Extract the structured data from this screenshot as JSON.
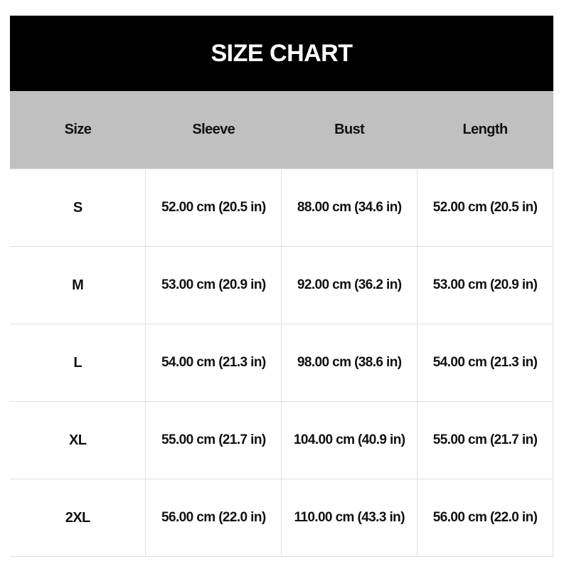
{
  "title": "SIZE CHART",
  "headers": [
    "Size",
    "Sleeve",
    "Bust",
    "Length"
  ],
  "rows": [
    [
      "S",
      "52.00 cm (20.5 in)",
      "88.00 cm (34.6 in)",
      "52.00 cm (20.5 in)"
    ],
    [
      "M",
      "53.00 cm (20.9 in)",
      "92.00 cm (36.2 in)",
      "53.00 cm (20.9 in)"
    ],
    [
      "L",
      "54.00 cm (21.3 in)",
      "98.00 cm (38.6 in)",
      "54.00 cm (21.3 in)"
    ],
    [
      "XL",
      "55.00 cm (21.7 in)",
      "104.00 cm (40.9 in)",
      "55.00 cm (21.7 in)"
    ],
    [
      "2XL",
      "56.00 cm (22.0 in)",
      "110.00 cm (43.3 in)",
      "56.00 cm (22.0 in)"
    ]
  ],
  "colors": {
    "title_bg": "#000000",
    "header_bg": "#c0c0c0",
    "border": "#e0e0e0"
  }
}
